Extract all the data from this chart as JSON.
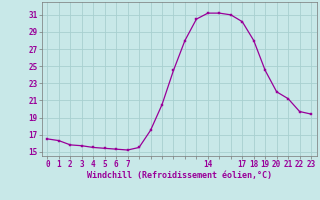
{
  "x": [
    0,
    1,
    2,
    3,
    4,
    5,
    6,
    7,
    8,
    9,
    10,
    11,
    12,
    13,
    14,
    15,
    16,
    17,
    18,
    19,
    20,
    21,
    22,
    23
  ],
  "y": [
    16.5,
    16.3,
    15.8,
    15.7,
    15.5,
    15.4,
    15.3,
    15.2,
    15.5,
    17.5,
    20.5,
    24.5,
    28.0,
    30.5,
    31.2,
    31.2,
    31.0,
    30.2,
    28.0,
    24.5,
    22.0,
    21.2,
    19.7,
    19.4
  ],
  "line_color": "#990099",
  "marker_color": "#990099",
  "bg_color": "#c8e8e8",
  "grid_color": "#a8d0d0",
  "xlabel": "Windchill (Refroidissement éolien,°C)",
  "xlabel_color": "#990099",
  "yticks": [
    15,
    17,
    19,
    21,
    23,
    25,
    27,
    29,
    31
  ],
  "xtick_show": [
    0,
    1,
    2,
    3,
    4,
    5,
    6,
    7,
    14,
    17,
    18,
    19,
    20,
    21,
    22,
    23
  ],
  "xtick_all": [
    0,
    1,
    2,
    3,
    4,
    5,
    6,
    7,
    8,
    9,
    10,
    11,
    12,
    13,
    14,
    15,
    16,
    17,
    18,
    19,
    20,
    21,
    22,
    23
  ],
  "ylim": [
    14.5,
    32.5
  ],
  "xlim": [
    -0.5,
    23.5
  ]
}
